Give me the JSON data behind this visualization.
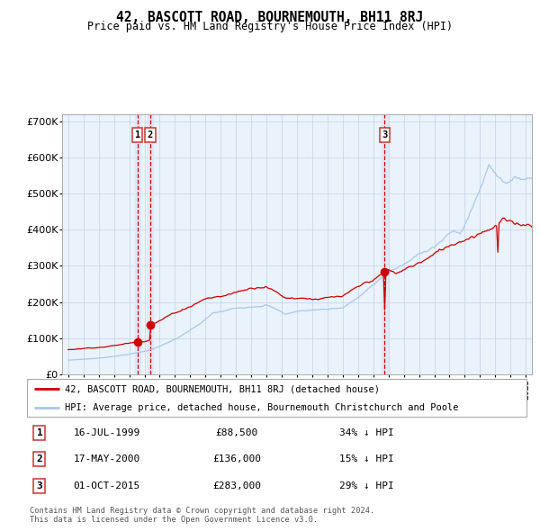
{
  "title": "42, BASCOTT ROAD, BOURNEMOUTH, BH11 8RJ",
  "subtitle": "Price paid vs. HM Land Registry's House Price Index (HPI)",
  "legend_line1": "42, BASCOTT ROAD, BOURNEMOUTH, BH11 8RJ (detached house)",
  "legend_line2": "HPI: Average price, detached house, Bournemouth Christchurch and Poole",
  "footer1": "Contains HM Land Registry data © Crown copyright and database right 2024.",
  "footer2": "This data is licensed under the Open Government Licence v3.0.",
  "transactions": [
    {
      "num": 1,
      "date": "16-JUL-1999",
      "price": 88500,
      "hpi_diff": "34% ↓ HPI",
      "year": 1999.54
    },
    {
      "num": 2,
      "date": "17-MAY-2000",
      "price": 136000,
      "hpi_diff": "15% ↓ HPI",
      "year": 2000.38
    },
    {
      "num": 3,
      "date": "01-OCT-2015",
      "price": 283000,
      "hpi_diff": "29% ↓ HPI",
      "year": 2015.75
    }
  ],
  "hpi_color": "#a8c8e8",
  "price_color": "#cc0000",
  "marker_color": "#cc0000",
  "vline_color": "#cc0000",
  "vspan_color": "#dce8f5",
  "grid_color": "#c8d8e8",
  "bg_color": "#eaf2fb",
  "ylim": [
    0,
    720000
  ],
  "yticks": [
    0,
    100000,
    200000,
    300000,
    400000,
    500000,
    600000,
    700000
  ],
  "xlim_start": 1994.6,
  "xlim_end": 2025.4
}
